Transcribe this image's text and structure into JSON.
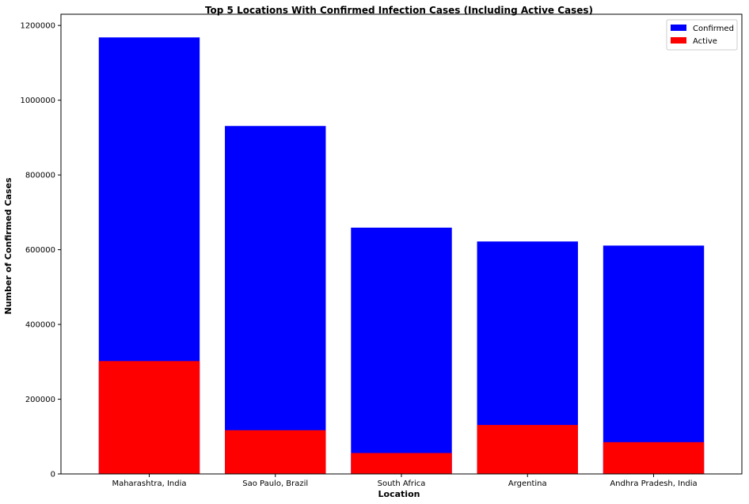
{
  "chart_data": {
    "type": "bar",
    "title": "Top 5 Locations With Confirmed Infection Cases (Including Active Cases)",
    "xlabel": "Location",
    "ylabel": "Number of Confirmed Cases",
    "categories": [
      "Maharashtra, India",
      "Sao Paulo, Brazil",
      "South Africa",
      "Argentina",
      "Andhra Pradesh, India"
    ],
    "series": [
      {
        "name": "Confirmed",
        "color": "#0000ff",
        "values": [
          1168000,
          931000,
          659000,
          622000,
          611000
        ]
      },
      {
        "name": "Active",
        "color": "#ff0000",
        "values": [
          302000,
          117000,
          56000,
          131000,
          85000
        ]
      }
    ],
    "ylim": [
      0,
      1230000
    ],
    "yticks": [
      0,
      200000,
      400000,
      600000,
      800000,
      1000000,
      1200000
    ],
    "ytick_labels": [
      "0",
      "200000",
      "400000",
      "600000",
      "800000",
      "1000000",
      "1200000"
    ],
    "grid": false,
    "legend_position": "top-right",
    "overlay": true
  }
}
